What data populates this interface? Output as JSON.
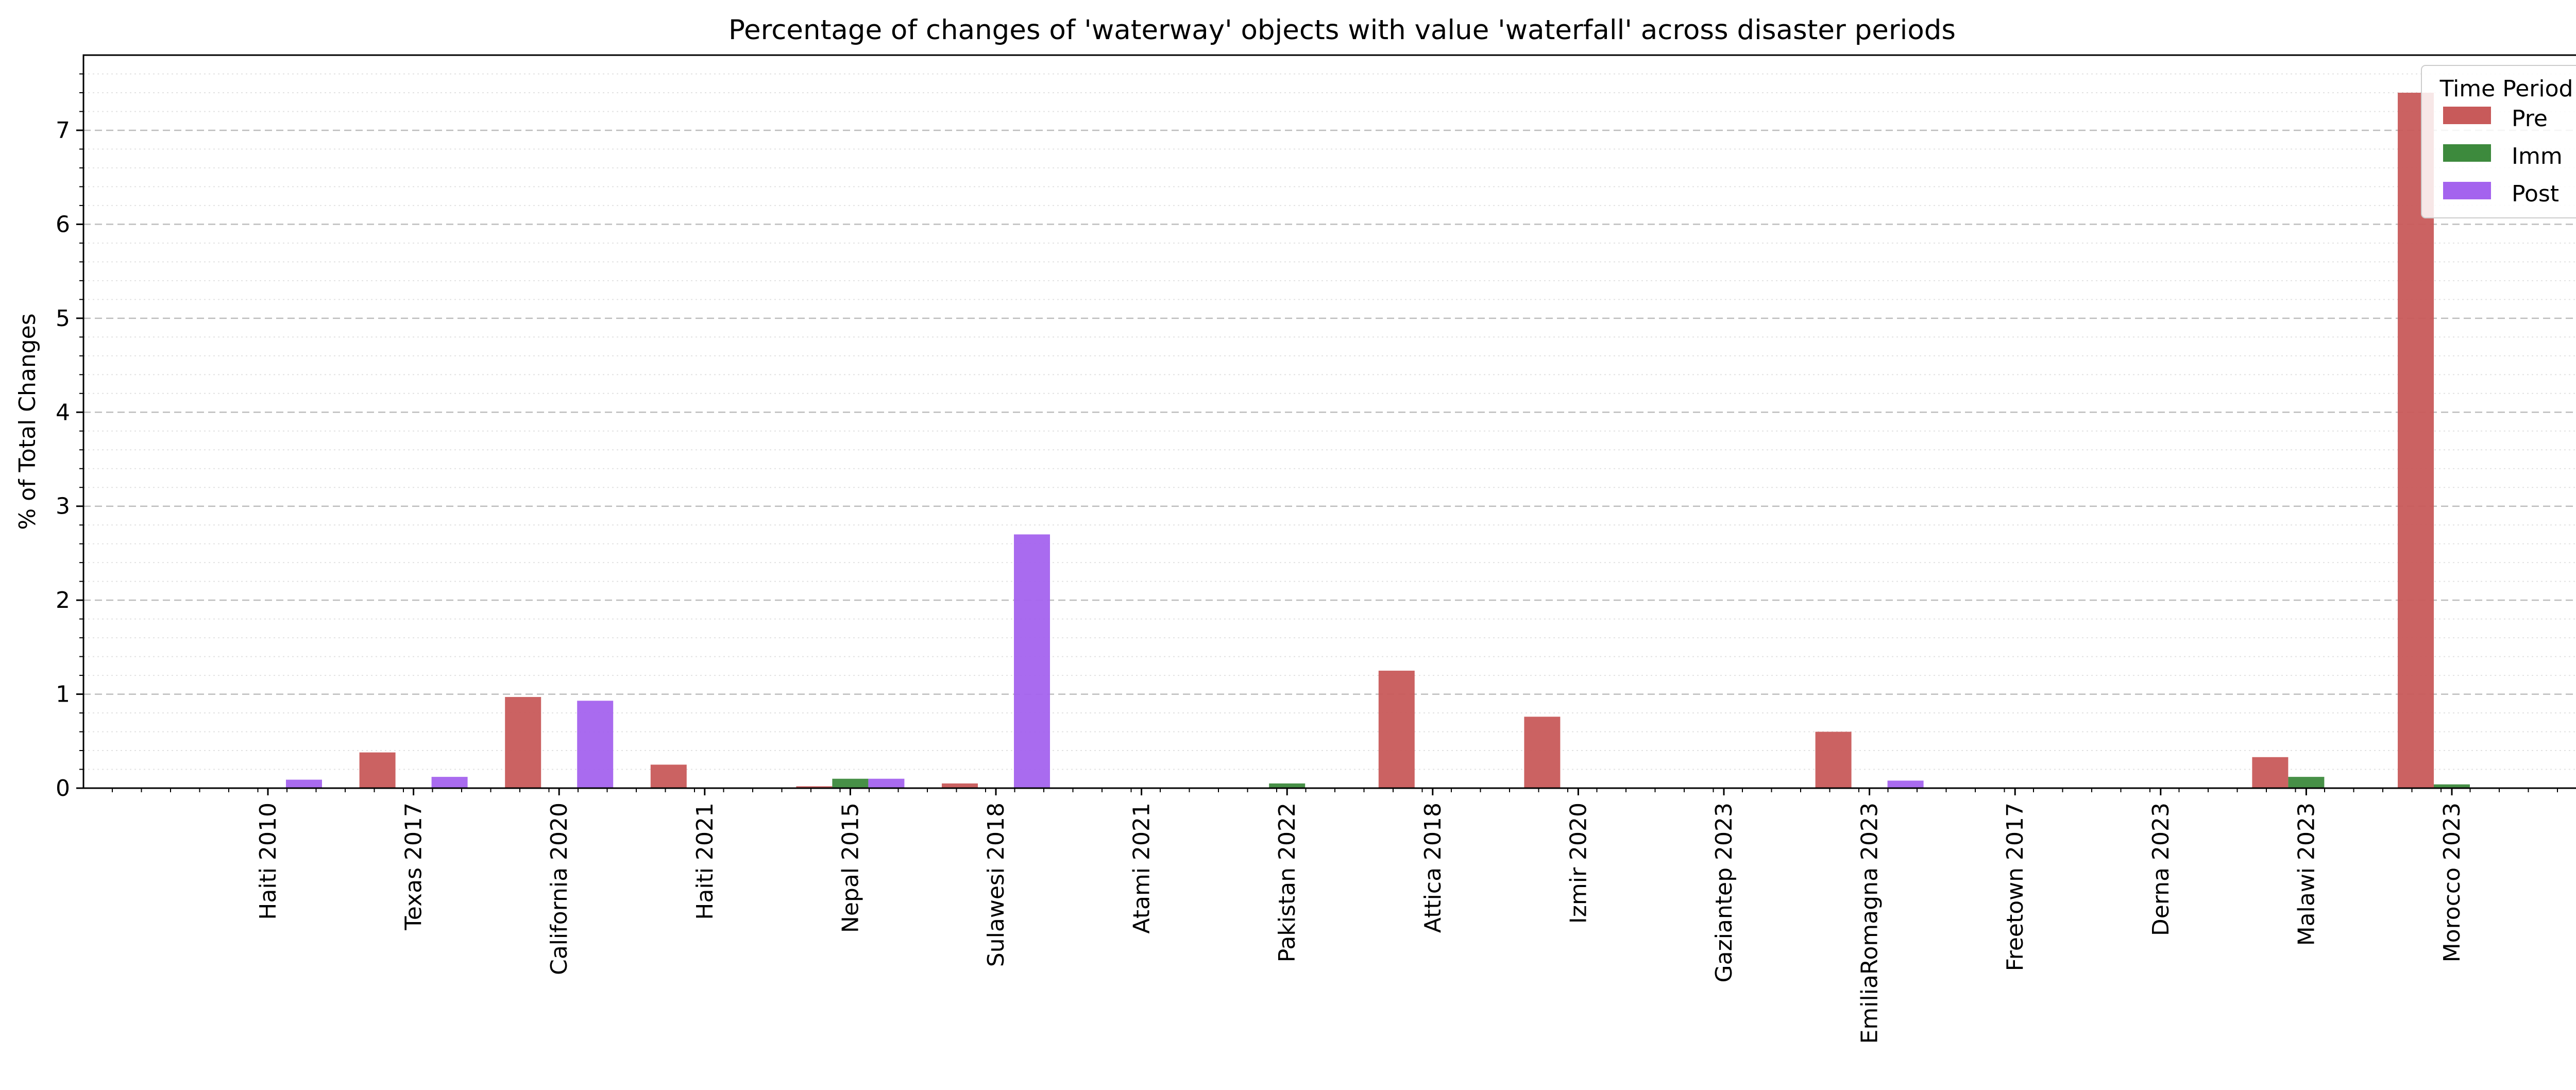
{
  "chart_data": {
    "type": "bar",
    "title": "Percentage of changes of 'waterway' objects with value 'waterfall' across disaster periods",
    "xlabel": "",
    "ylabel": "% of Total Changes",
    "ylim": [
      0,
      7.8
    ],
    "yticks": [
      "0",
      "1",
      "2",
      "3",
      "4",
      "5",
      "6",
      "7"
    ],
    "grid": true,
    "categories": [
      "Haiti 2010",
      "Texas 2017",
      "California 2020",
      "Haiti 2021",
      "Nepal 2015",
      "Sulawesi 2018",
      "Atami 2021",
      "Pakistan 2022",
      "Attica 2018",
      "Izmir 2020",
      "Gaziantep 2023",
      "EmiliaRomagna 2023",
      "Freetown 2017",
      "Derna 2023",
      "Malawi 2023",
      "Morocco 2023"
    ],
    "legend": {
      "title": "Time Period",
      "position": "top-right"
    },
    "series": [
      {
        "name": "Pre",
        "color": "#c85a5a",
        "values": [
          0,
          0.38,
          0.97,
          0.25,
          0.02,
          0.05,
          0,
          0,
          1.25,
          0.76,
          0,
          0.6,
          0,
          0,
          0.33,
          7.4
        ]
      },
      {
        "name": "Imm",
        "color": "#3d8a3d",
        "values": [
          0,
          0,
          0,
          0,
          0.1,
          0,
          0,
          0.05,
          0,
          0,
          0,
          0,
          0,
          0,
          0.12,
          0.04
        ]
      },
      {
        "name": "Post",
        "color": "#a463ee",
        "values": [
          0.09,
          0.12,
          0.93,
          0,
          0.1,
          2.7,
          0,
          0,
          0,
          0,
          0,
          0.08,
          0,
          0,
          0,
          0
        ]
      }
    ]
  }
}
